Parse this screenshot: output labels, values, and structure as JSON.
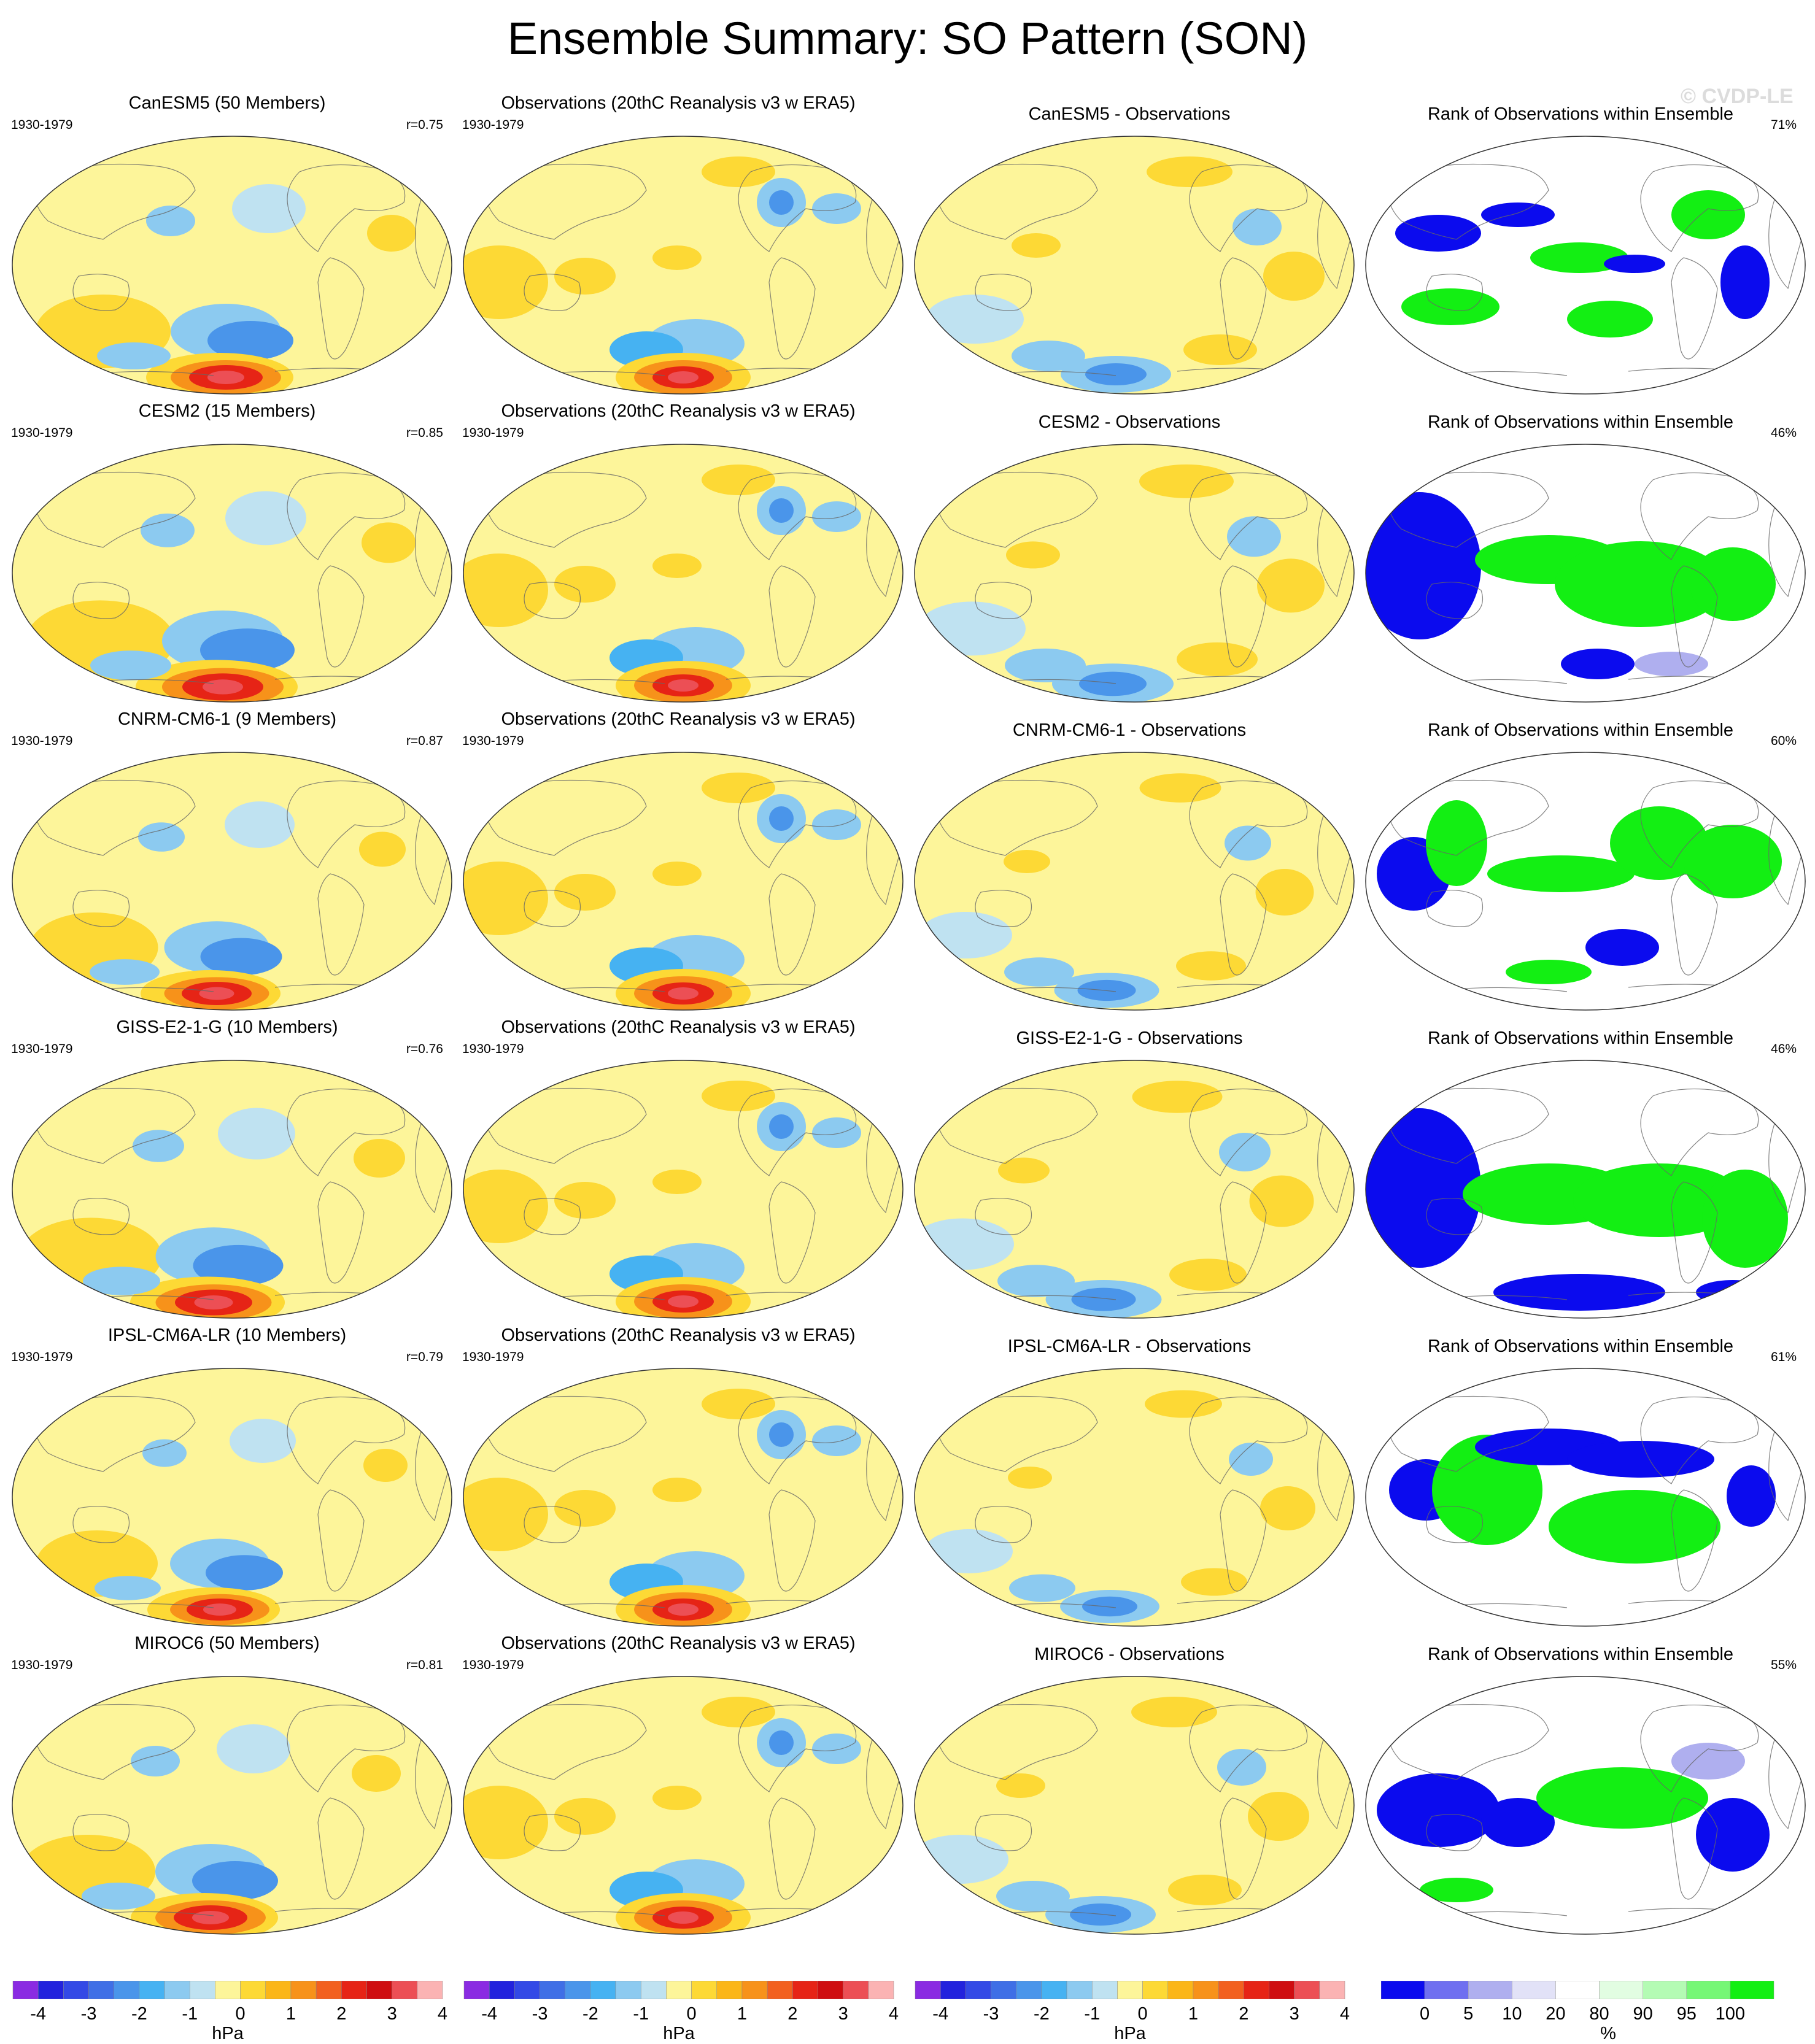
{
  "title": "Ensemble Summary: SO Pattern (SON)",
  "watermark": "© CVDP-LE",
  "colors": {
    "pattern_scale": [
      "#8a2be2",
      "#2222dd",
      "#3349e6",
      "#3f6fe6",
      "#4a95ea",
      "#46b2f2",
      "#8ccaf0",
      "#bfe2f1",
      "#fdf59a",
      "#fdd935",
      "#fbb618",
      "#f7921a",
      "#f2601f",
      "#e62416",
      "#cf0d10",
      "#ec4f55",
      "#fbb3b3"
    ],
    "rank_scale": [
      "#0b0bee",
      "#6f6ff0",
      "#afafef",
      "#e2e2f7",
      "#ffffff",
      "#e2fde2",
      "#b4fbb4",
      "#76f776",
      "#13ef13"
    ]
  },
  "colorbars": [
    {
      "ticks": [
        "-4",
        "-3",
        "-2",
        "-1",
        "0",
        "1",
        "2",
        "3",
        "4"
      ],
      "unit": "hPa"
    },
    {
      "ticks": [
        "-4",
        "-3",
        "-2",
        "-1",
        "0",
        "1",
        "2",
        "3",
        "4"
      ],
      "unit": "hPa"
    },
    {
      "ticks": [
        "-4",
        "-3",
        "-2",
        "-1",
        "0",
        "1",
        "2",
        "3",
        "4"
      ],
      "unit": "hPa"
    },
    {
      "ticks": [
        "0",
        "5",
        "10",
        "20",
        "80",
        "90",
        "95",
        "100"
      ],
      "unit": "%"
    }
  ],
  "chart_data": {
    "type": "heatmap",
    "projection": "Robinson (global maps)",
    "contour_levels_hPa": [
      -4,
      -3.5,
      -3,
      -2.5,
      -2,
      -1.5,
      -1,
      -0.5,
      0,
      0.5,
      1,
      1.5,
      2,
      2.5,
      3,
      3.5,
      4
    ],
    "rank_levels_percent": [
      0,
      5,
      10,
      20,
      80,
      90,
      95,
      100
    ],
    "rows": [
      {
        "model": "CanESM5",
        "model_panel_title": "CanESM5 (50 Members)",
        "years": "1930-1979",
        "pattern_correlation": "r=0.75",
        "obs_panel_title": "Observations (20thC Reanalysis v3 w ERA5)",
        "diff_panel_title": "CanESM5 - Observations",
        "rank_panel_title": "Rank of Observations within Ensemble",
        "rank_percent": "71%"
      },
      {
        "model": "CESM2",
        "model_panel_title": "CESM2 (15 Members)",
        "years": "1930-1979",
        "pattern_correlation": "r=0.85",
        "obs_panel_title": "Observations (20thC Reanalysis v3 w ERA5)",
        "diff_panel_title": "CESM2 - Observations",
        "rank_panel_title": "Rank of Observations within Ensemble",
        "rank_percent": "46%"
      },
      {
        "model": "CNRM-CM6-1",
        "model_panel_title": "CNRM-CM6-1 (9 Members)",
        "years": "1930-1979",
        "pattern_correlation": "r=0.87",
        "obs_panel_title": "Observations (20thC Reanalysis v3 w ERA5)",
        "diff_panel_title": "CNRM-CM6-1 - Observations",
        "rank_panel_title": "Rank of Observations within Ensemble",
        "rank_percent": "60%"
      },
      {
        "model": "GISS-E2-1-G",
        "model_panel_title": "GISS-E2-1-G (10 Members)",
        "years": "1930-1979",
        "pattern_correlation": "r=0.76",
        "obs_panel_title": "Observations (20thC Reanalysis v3 w ERA5)",
        "diff_panel_title": "GISS-E2-1-G - Observations",
        "rank_panel_title": "Rank of Observations within Ensemble",
        "rank_percent": "46%"
      },
      {
        "model": "IPSL-CM6A-LR",
        "model_panel_title": "IPSL-CM6A-LR (10 Members)",
        "years": "1930-1979",
        "pattern_correlation": "r=0.79",
        "obs_panel_title": "Observations (20thC Reanalysis v3 w ERA5)",
        "diff_panel_title": "IPSL-CM6A-LR - Observations",
        "rank_panel_title": "Rank of Observations within Ensemble",
        "rank_percent": "61%"
      },
      {
        "model": "MIROC6",
        "model_panel_title": "MIROC6 (50 Members)",
        "years": "1930-1979",
        "pattern_correlation": "r=0.81",
        "obs_panel_title": "Observations (20thC Reanalysis v3 w ERA5)",
        "diff_panel_title": "MIROC6 - Observations",
        "rank_panel_title": "Rank of Observations within Ensemble",
        "rank_percent": "55%"
      }
    ]
  }
}
